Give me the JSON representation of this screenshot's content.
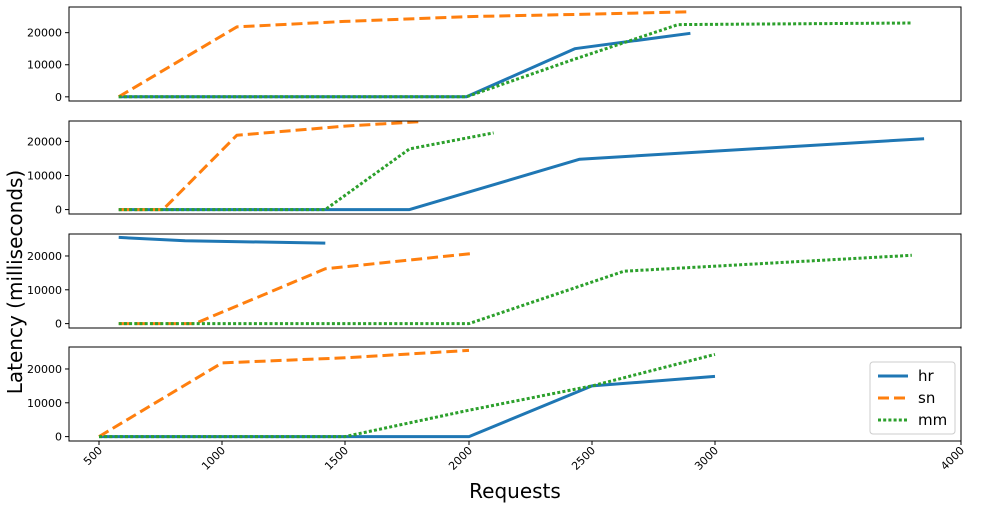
{
  "chart_data": {
    "type": "line",
    "xlabel": "Requests",
    "ylabel": "Latency (milliseconds)",
    "xlim": [
      420,
      4000
    ],
    "x_ticks": [
      500,
      1000,
      1500,
      2000,
      2500,
      3000,
      4000
    ],
    "x_tick_labels": [
      "500",
      "1000",
      "1500",
      "2000",
      "2500",
      "3000",
      "4000"
    ],
    "y_ticks": [
      0,
      10000,
      20000
    ],
    "y_tick_labels": [
      "0",
      "10000",
      "20000"
    ],
    "legend": {
      "placement": "lower-right",
      "entries": [
        "hr",
        "sn",
        "mm"
      ]
    },
    "series_styles": [
      {
        "name": "hr",
        "color": "#1f77b4",
        "dash": "solid"
      },
      {
        "name": "sn",
        "color": "#ff7f0e",
        "dash": "dashed"
      },
      {
        "name": "mm",
        "color": "#2ca02c",
        "dash": "dotted"
      }
    ],
    "panels": [
      {
        "ylim": [
          -1300,
          28000
        ],
        "series": [
          {
            "name": "hr",
            "points": [
              [
                580,
                0
              ],
              [
                1000,
                0
              ],
              [
                1500,
                0
              ],
              [
                1990,
                0
              ],
              [
                2430,
                15000
              ],
              [
                2900,
                19800
              ]
            ]
          },
          {
            "name": "sn",
            "points": [
              [
                580,
                0
              ],
              [
                1060,
                21800
              ],
              [
                1500,
                23500
              ],
              [
                2000,
                25000
              ],
              [
                2500,
                25800
              ],
              [
                2900,
                26500
              ]
            ]
          },
          {
            "name": "mm",
            "points": [
              [
                580,
                0
              ],
              [
                1500,
                0
              ],
              [
                1990,
                0
              ],
              [
                2420,
                11500
              ],
              [
                2850,
                22500
              ],
              [
                3800,
                23000
              ]
            ]
          }
        ]
      },
      {
        "ylim": [
          -1300,
          26000
        ],
        "series": [
          {
            "name": "hr",
            "points": [
              [
                580,
                0
              ],
              [
                1000,
                0
              ],
              [
                1500,
                0
              ],
              [
                1760,
                0
              ],
              [
                2450,
                14800
              ],
              [
                3850,
                20800
              ]
            ]
          },
          {
            "name": "sn",
            "points": [
              [
                580,
                0
              ],
              [
                760,
                0
              ],
              [
                1060,
                21800
              ],
              [
                1500,
                24500
              ],
              [
                1800,
                25800
              ]
            ]
          },
          {
            "name": "mm",
            "points": [
              [
                580,
                0
              ],
              [
                1000,
                0
              ],
              [
                1420,
                0
              ],
              [
                1760,
                17800
              ],
              [
                2100,
                22500
              ]
            ]
          }
        ]
      },
      {
        "ylim": [
          -1300,
          26500
        ],
        "series": [
          {
            "name": "hr",
            "points": [
              [
                580,
                25500
              ],
              [
                850,
                24500
              ],
              [
                1420,
                23800
              ]
            ]
          },
          {
            "name": "sn",
            "points": [
              [
                580,
                0
              ],
              [
                890,
                0
              ],
              [
                1420,
                16200
              ],
              [
                2020,
                20800
              ]
            ]
          },
          {
            "name": "mm",
            "points": [
              [
                580,
                0
              ],
              [
                1500,
                0
              ],
              [
                2000,
                0
              ],
              [
                2630,
                15500
              ],
              [
                3800,
                20200
              ]
            ]
          }
        ]
      },
      {
        "ylim": [
          -1300,
          26500
        ],
        "series": [
          {
            "name": "hr",
            "points": [
              [
                500,
                0
              ],
              [
                1000,
                0
              ],
              [
                1500,
                0
              ],
              [
                2000,
                0
              ],
              [
                2500,
                15000
              ],
              [
                3000,
                17800
              ]
            ]
          },
          {
            "name": "sn",
            "points": [
              [
                500,
                0
              ],
              [
                1000,
                21800
              ],
              [
                1500,
                23300
              ],
              [
                2000,
                25500
              ]
            ]
          },
          {
            "name": "mm",
            "points": [
              [
                500,
                0
              ],
              [
                1000,
                0
              ],
              [
                1500,
                0
              ],
              [
                2000,
                7800
              ],
              [
                2500,
                15000
              ],
              [
                3000,
                24300
              ]
            ]
          }
        ]
      }
    ]
  }
}
